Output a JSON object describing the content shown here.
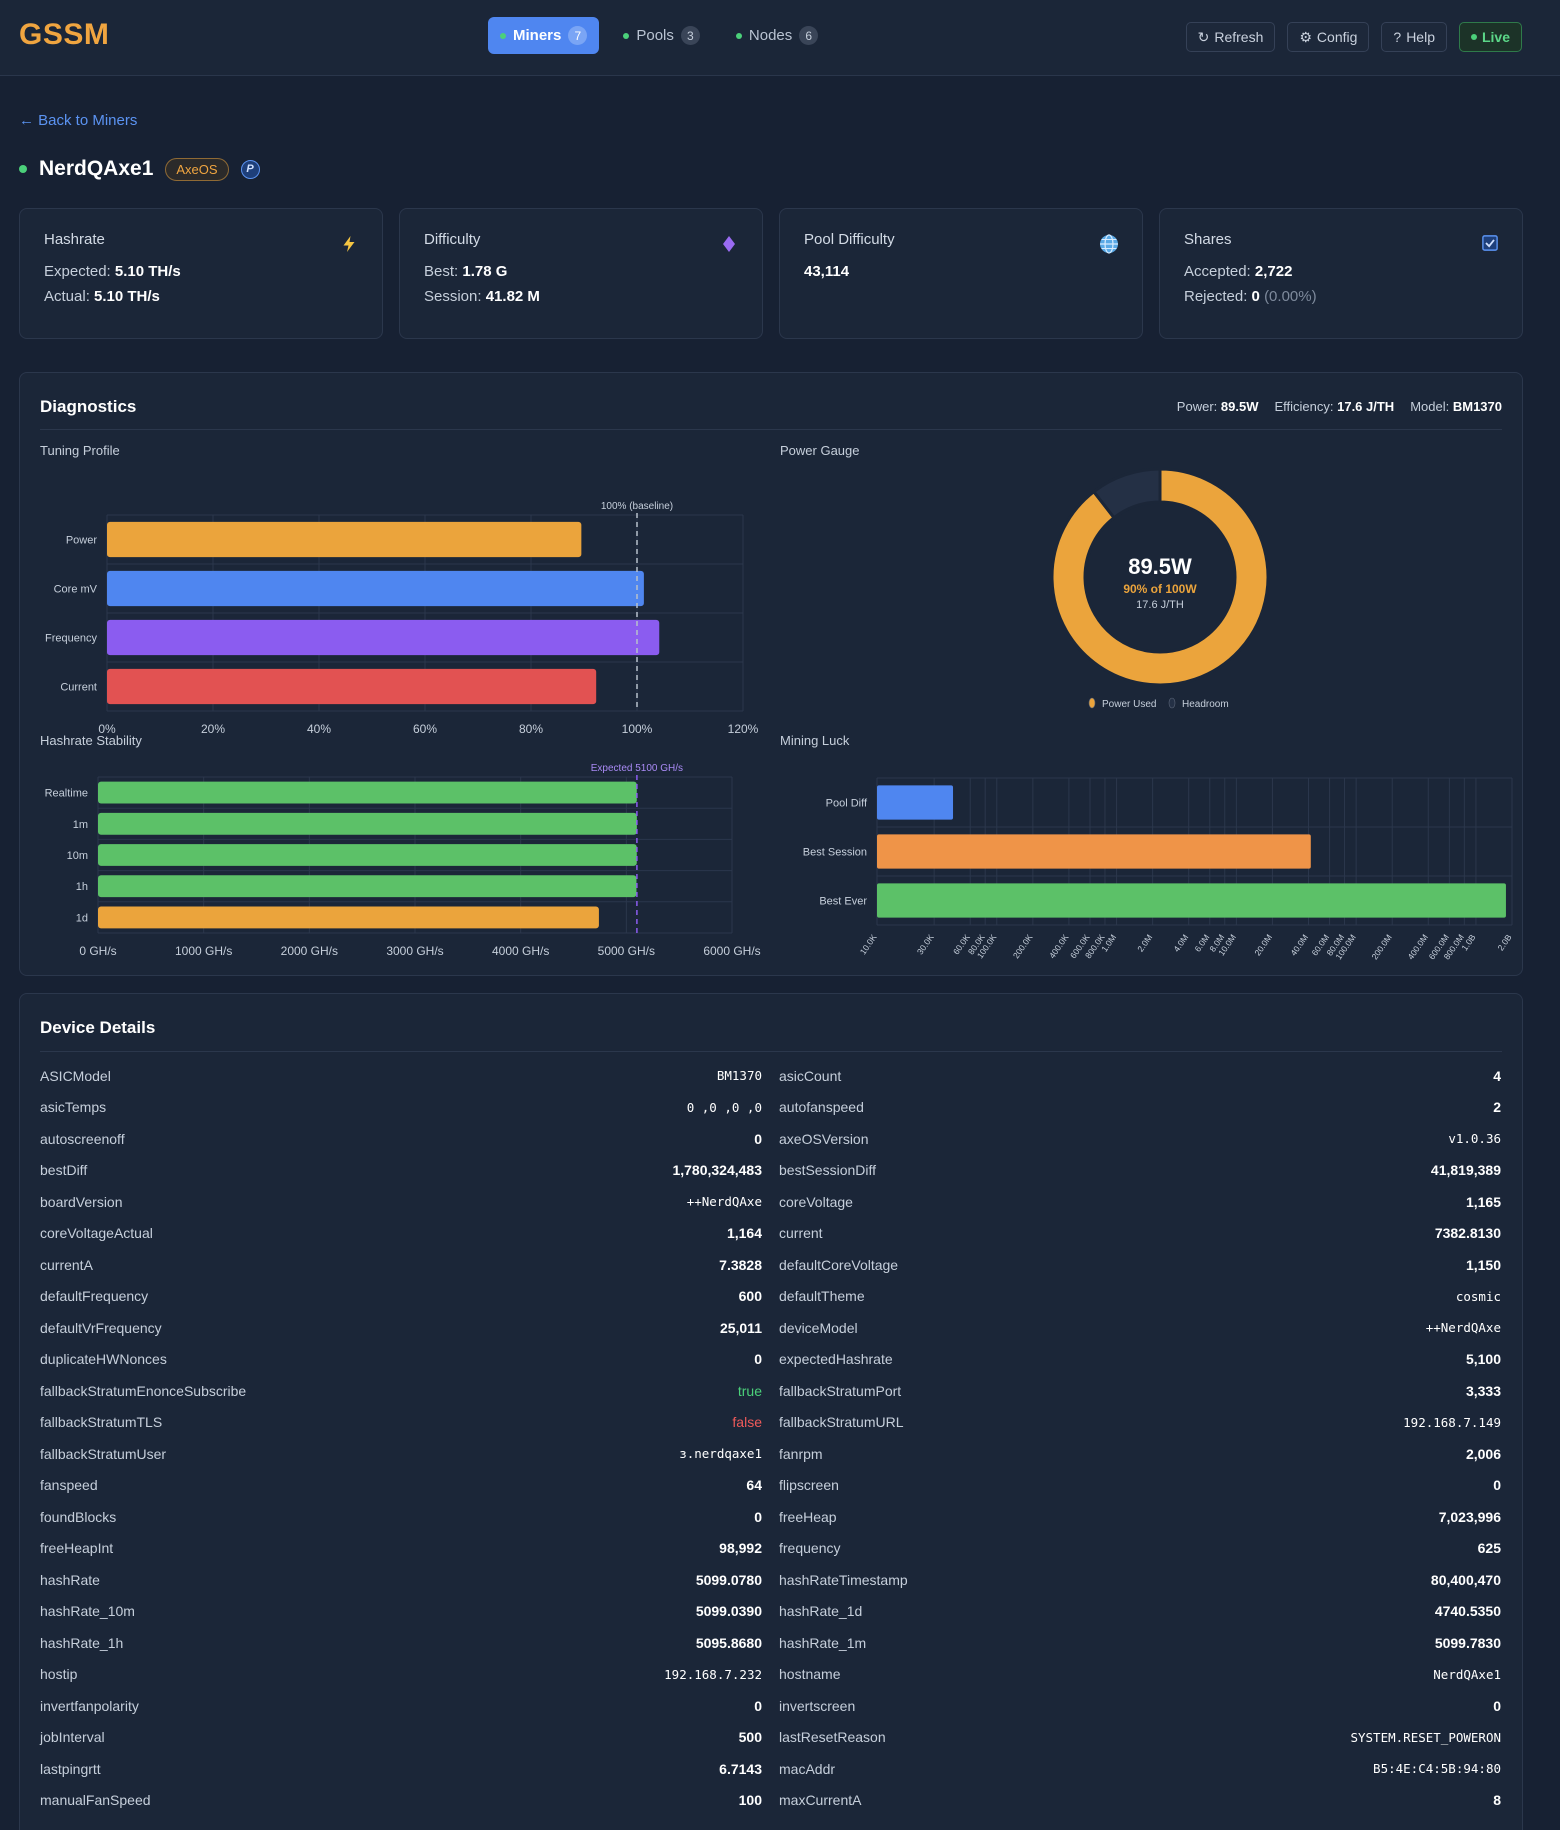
{
  "app": {
    "logo": "GSSM",
    "nav": [
      {
        "label": "Miners",
        "count": "7",
        "active": true
      },
      {
        "label": "Pools",
        "count": "3",
        "active": false
      },
      {
        "label": "Nodes",
        "count": "6",
        "active": false
      }
    ],
    "actions": {
      "refresh": "Refresh",
      "config": "Config",
      "help": "Help",
      "live": "Live"
    },
    "icons": {
      "refresh": "↻",
      "config": "⚙",
      "help": "?"
    }
  },
  "back_label": "← Back to Miners",
  "miner": {
    "name": "NerdQAxe1",
    "os_badge": "AxeOS",
    "pool_badge": "P"
  },
  "stats": {
    "hashrate": {
      "label": "Hashrate",
      "expected_label": "Expected:",
      "expected": "5.10 TH/s",
      "actual_label": "Actual:",
      "actual": "5.10 TH/s"
    },
    "difficulty": {
      "label": "Difficulty",
      "best_label": "Best:",
      "best": "1.78 G",
      "session_label": "Session:",
      "session": "41.82 M"
    },
    "pool_difficulty": {
      "label": "Pool Difficulty",
      "value": "43,114"
    },
    "shares": {
      "label": "Shares",
      "accepted_label": "Accepted:",
      "accepted": "2,722",
      "rejected_label": "Rejected:",
      "rejected": "0",
      "rejected_pct": "(0.00%)"
    }
  },
  "diagnostics": {
    "title": "Diagnostics",
    "power_label": "Power:",
    "power": "89.5W",
    "efficiency_label": "Efficiency:",
    "efficiency": "17.6 J/TH",
    "model_label": "Model:",
    "model": "BM1370",
    "tuning_title": "Tuning Profile",
    "gauge_title": "Power Gauge",
    "stability_title": "Hashrate Stability",
    "luck_title": "Mining Luck"
  },
  "chart_data": [
    {
      "type": "bar",
      "orientation": "horizontal",
      "title": "Tuning Profile",
      "categories": [
        "Power",
        "Core mV",
        "Frequency",
        "Current"
      ],
      "values": [
        89.5,
        101.3,
        104.2,
        92.3
      ],
      "colors": [
        "#eba43c",
        "#4f86f0",
        "#8b5cf0",
        "#e25252"
      ],
      "xlim": [
        0,
        120
      ],
      "ticks": [
        "0%",
        "20%",
        "40%",
        "60%",
        "80%",
        "100%",
        "120%"
      ],
      "reference": {
        "value": 100,
        "label": "100% (baseline)"
      }
    },
    {
      "type": "pie",
      "title": "Power Gauge",
      "center_value": "89.5W",
      "center_sub": "90% of 100W",
      "center_sub2": "17.6 J/TH",
      "slices": [
        {
          "name": "Power Used",
          "value": 89.5,
          "color": "#eba43c"
        },
        {
          "name": "Headroom",
          "value": 10.5,
          "color": "#243045"
        }
      ]
    },
    {
      "type": "bar",
      "orientation": "horizontal",
      "title": "Hashrate Stability",
      "categories": [
        "Realtime",
        "1m",
        "10m",
        "1h",
        "1d"
      ],
      "values": [
        5099.078,
        5099.783,
        5099.039,
        5095.868,
        4740.535
      ],
      "colors": [
        "#5cc168",
        "#5cc168",
        "#5cc168",
        "#5cc168",
        "#eba43c"
      ],
      "xlim": [
        0,
        6000
      ],
      "ticks": [
        "0 GH/s",
        "1000 GH/s",
        "2000 GH/s",
        "3000 GH/s",
        "4000 GH/s",
        "5000 GH/s",
        "6000 GH/s"
      ],
      "reference": {
        "value": 5100,
        "label": "Expected 5100 GH/s"
      }
    },
    {
      "type": "bar",
      "orientation": "horizontal",
      "title": "Mining Luck",
      "scale": "log",
      "categories": [
        "Pool Diff",
        "Best Session",
        "Best Ever"
      ],
      "values": [
        43114,
        41819389,
        1780324483
      ],
      "colors": [
        "#4f86f0",
        "#ef9448",
        "#5cc168"
      ],
      "xlim": [
        10000,
        2000000000
      ],
      "ticks": [
        "10.0K",
        "30.0K",
        "60.0K",
        "80.0K",
        "100.0K",
        "200.0K",
        "400.0K",
        "600.0K",
        "800.0K",
        "1.0M",
        "2.0M",
        "4.0M",
        "6.0M",
        "8.0M",
        "10.0M",
        "20.0M",
        "40.0M",
        "60.0M",
        "80.0M",
        "100.0M",
        "200.0M",
        "400.0M",
        "600.0M",
        "800.0M",
        "1.0B",
        "2.0B"
      ],
      "tick_values": [
        10000,
        30000,
        60000,
        80000,
        100000,
        200000,
        400000,
        600000,
        800000,
        1000000,
        2000000,
        4000000,
        6000000,
        8000000,
        10000000,
        20000000,
        40000000,
        60000000,
        80000000,
        100000000,
        200000000,
        400000000,
        600000000,
        800000000,
        1000000000,
        2000000000
      ]
    }
  ],
  "device_details": {
    "title": "Device Details",
    "left": [
      {
        "k": "ASICModel",
        "v": "BM1370",
        "t": "mono"
      },
      {
        "k": "asicTemps",
        "v": "0, 0, 0, 0",
        "t": "mono"
      },
      {
        "k": "autoscreenoff",
        "v": "0",
        "t": "num"
      },
      {
        "k": "bestDiff",
        "v": "1,780,324,483",
        "t": "num"
      },
      {
        "k": "boardVersion",
        "v": "NerdQAxe++",
        "t": "mono"
      },
      {
        "k": "coreVoltageActual",
        "v": "1,164",
        "t": "num"
      },
      {
        "k": "currentA",
        "v": "7.3828",
        "t": "num"
      },
      {
        "k": "defaultFrequency",
        "v": "600",
        "t": "num"
      },
      {
        "k": "defaultVrFrequency",
        "v": "25,011",
        "t": "num"
      },
      {
        "k": "duplicateHWNonces",
        "v": "0",
        "t": "num"
      },
      {
        "k": "fallbackStratumEnonceSubscribe",
        "v": "true",
        "t": "true"
      },
      {
        "k": "fallbackStratumTLS",
        "v": "false",
        "t": "false"
      },
      {
        "k": "fallbackStratumUser",
        "v": "ɜ.nerdqaxe1",
        "t": "mono"
      },
      {
        "k": "fanspeed",
        "v": "64",
        "t": "num"
      },
      {
        "k": "foundBlocks",
        "v": "0",
        "t": "num"
      },
      {
        "k": "freeHeapInt",
        "v": "98,992",
        "t": "num"
      },
      {
        "k": "hashRate",
        "v": "5099.0780",
        "t": "num"
      },
      {
        "k": "hashRate_10m",
        "v": "5099.0390",
        "t": "num"
      },
      {
        "k": "hashRate_1h",
        "v": "5095.8680",
        "t": "num"
      },
      {
        "k": "hostip",
        "v": "192.168.7.232",
        "t": "mono"
      },
      {
        "k": "invertfanpolarity",
        "v": "0",
        "t": "num"
      },
      {
        "k": "jobInterval",
        "v": "500",
        "t": "num"
      },
      {
        "k": "lastpingrtt",
        "v": "6.7143",
        "t": "num"
      },
      {
        "k": "manualFanSpeed",
        "v": "100",
        "t": "num"
      }
    ],
    "right": [
      {
        "k": "asicCount",
        "v": "4",
        "t": "num"
      },
      {
        "k": "autofanspeed",
        "v": "2",
        "t": "num"
      },
      {
        "k": "axeOSVersion",
        "v": "v1.0.36",
        "t": "mono"
      },
      {
        "k": "bestSessionDiff",
        "v": "41,819,389",
        "t": "num"
      },
      {
        "k": "coreVoltage",
        "v": "1,165",
        "t": "num"
      },
      {
        "k": "current",
        "v": "7382.8130",
        "t": "num"
      },
      {
        "k": "defaultCoreVoltage",
        "v": "1,150",
        "t": "num"
      },
      {
        "k": "defaultTheme",
        "v": "cosmic",
        "t": "mono"
      },
      {
        "k": "deviceModel",
        "v": "NerdQAxe++",
        "t": "mono"
      },
      {
        "k": "expectedHashrate",
        "v": "5,100",
        "t": "num"
      },
      {
        "k": "fallbackStratumPort",
        "v": "3,333",
        "t": "num"
      },
      {
        "k": "fallbackStratumURL",
        "v": "192.168.7.149",
        "t": "mono"
      },
      {
        "k": "fanrpm",
        "v": "2,006",
        "t": "num"
      },
      {
        "k": "flipscreen",
        "v": "0",
        "t": "num"
      },
      {
        "k": "freeHeap",
        "v": "7,023,996",
        "t": "num"
      },
      {
        "k": "frequency",
        "v": "625",
        "t": "num"
      },
      {
        "k": "hashRateTimestamp",
        "v": "80,400,470",
        "t": "num"
      },
      {
        "k": "hashRate_1d",
        "v": "4740.5350",
        "t": "num"
      },
      {
        "k": "hashRate_1m",
        "v": "5099.7830",
        "t": "num"
      },
      {
        "k": "hostname",
        "v": "NerdQAxe1",
        "t": "mono"
      },
      {
        "k": "invertscreen",
        "v": "0",
        "t": "num"
      },
      {
        "k": "lastResetReason",
        "v": "SYSTEM.RESET_POWERON",
        "t": "mono"
      },
      {
        "k": "macAddr",
        "v": "80:B5:4E:C4:5B:94",
        "t": "mono"
      },
      {
        "k": "maxCurrentA",
        "v": "8",
        "t": "num"
      }
    ]
  }
}
